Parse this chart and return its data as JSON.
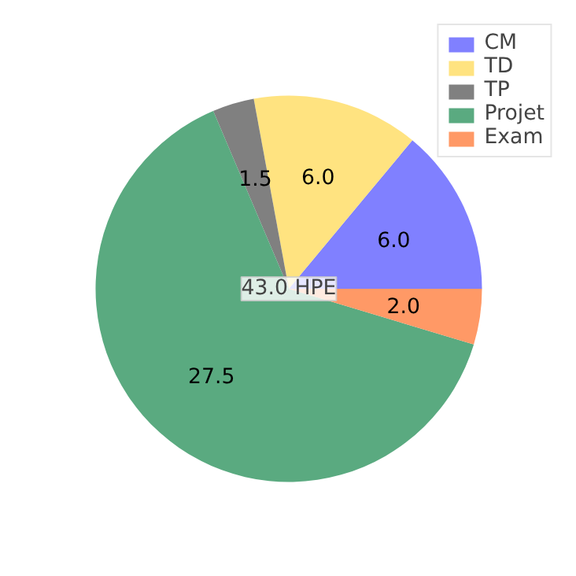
{
  "chart_data": {
    "type": "pie",
    "categories": [
      "CM",
      "TD",
      "TP",
      "Projet",
      "Exam"
    ],
    "values": [
      6.0,
      6.0,
      1.5,
      27.5,
      2.0
    ],
    "colors": [
      "#8080ff",
      "#ffe380",
      "#808080",
      "#5aaa80",
      "#ff9966"
    ],
    "value_labels": [
      "6.0",
      "6.0",
      "1.5",
      "27.5",
      "2.0"
    ],
    "annotations": [
      "43.0 HPE"
    ],
    "legend": "top right"
  }
}
